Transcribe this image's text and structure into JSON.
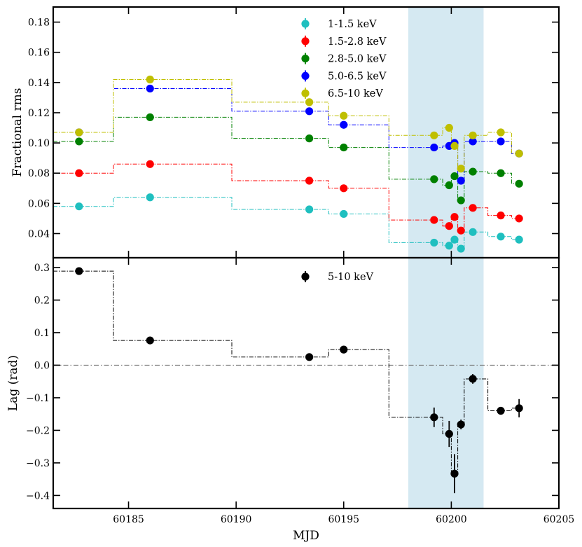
{
  "chart_data": [
    {
      "type": "scatter",
      "panel": "top",
      "ylabel": "Fractional rms",
      "xlim": [
        60181.5,
        60205
      ],
      "ylim": [
        0.024,
        0.19
      ],
      "yticks": [
        "0.04",
        "0.06",
        "0.08",
        "0.10",
        "0.12",
        "0.14",
        "0.16",
        "0.18"
      ],
      "highlight_band": [
        60198,
        60201.5
      ],
      "highlight_color": "#d5e9f2",
      "legend_position": "top-center",
      "step_edges": [
        60181.5,
        60184.3,
        60189.8,
        60194.3,
        60197.1,
        60199.6,
        60200.0,
        60200.3,
        60200.6,
        60201.7,
        60202.8,
        60203.2
      ],
      "x": [
        60182.7,
        60186.0,
        60193.4,
        60195.0,
        60199.2,
        60199.9,
        60200.15,
        60200.45,
        60201.0,
        60202.3,
        60203.15
      ],
      "series": [
        {
          "name": "1-1.5 keV",
          "color": "#1fbfbf",
          "values": [
            0.058,
            0.064,
            0.056,
            0.053,
            0.034,
            0.032,
            0.036,
            0.03,
            0.041,
            0.038,
            0.036
          ]
        },
        {
          "name": "1.5-2.8 keV",
          "color": "#ff0000",
          "values": [
            0.08,
            0.086,
            0.075,
            0.07,
            0.049,
            0.045,
            0.051,
            0.042,
            0.057,
            0.052,
            0.05
          ]
        },
        {
          "name": "2.8-5.0 keV",
          "color": "#008000",
          "values": [
            0.101,
            0.117,
            0.103,
            0.097,
            0.076,
            0.072,
            0.078,
            0.062,
            0.081,
            0.08,
            0.073
          ]
        },
        {
          "name": "5.0-6.5 keV",
          "color": "#0000ff",
          "values": [
            0.107,
            0.136,
            0.121,
            0.112,
            0.097,
            0.098,
            0.1,
            0.075,
            0.101,
            0.101,
            0.093
          ]
        },
        {
          "name": "6.5-10 keV",
          "color": "#bfbf00",
          "values": [
            0.107,
            0.142,
            0.127,
            0.118,
            0.105,
            0.11,
            0.098,
            0.083,
            0.105,
            0.107,
            0.093
          ]
        }
      ]
    },
    {
      "type": "scatter",
      "panel": "bottom",
      "xlabel": "MJD",
      "ylabel": "Lag (rad)",
      "xlim": [
        60181.5,
        60205
      ],
      "ylim": [
        -0.44,
        0.33
      ],
      "xticks": [
        "60185",
        "60190",
        "60195",
        "60200",
        "60205"
      ],
      "yticks": [
        "−0.4",
        "−0.3",
        "−0.2",
        "−0.1",
        "0.0",
        "0.1",
        "0.2",
        "0.3"
      ],
      "zero_line": 0,
      "highlight_band": [
        60198,
        60201.5
      ],
      "legend_position": "top-center",
      "step_edges": [
        60181.5,
        60184.3,
        60189.8,
        60194.3,
        60197.1,
        60199.6,
        60200.0,
        60200.3,
        60200.6,
        60201.7,
        60202.8,
        60203.2
      ],
      "x": [
        60182.7,
        60186.0,
        60193.4,
        60195.0,
        60199.2,
        60199.9,
        60200.15,
        60200.45,
        60201.0,
        60202.3,
        60203.15
      ],
      "series": [
        {
          "name": "5-10 keV",
          "color": "#000000",
          "values": [
            0.289,
            0.076,
            0.025,
            0.048,
            -0.16,
            -0.211,
            -0.333,
            -0.182,
            -0.042,
            -0.14,
            -0.132
          ],
          "errors": [
            0.005,
            0.005,
            0.005,
            0.005,
            0.03,
            0.04,
            0.06,
            0.015,
            0.015,
            0.012,
            0.028
          ]
        }
      ]
    }
  ]
}
